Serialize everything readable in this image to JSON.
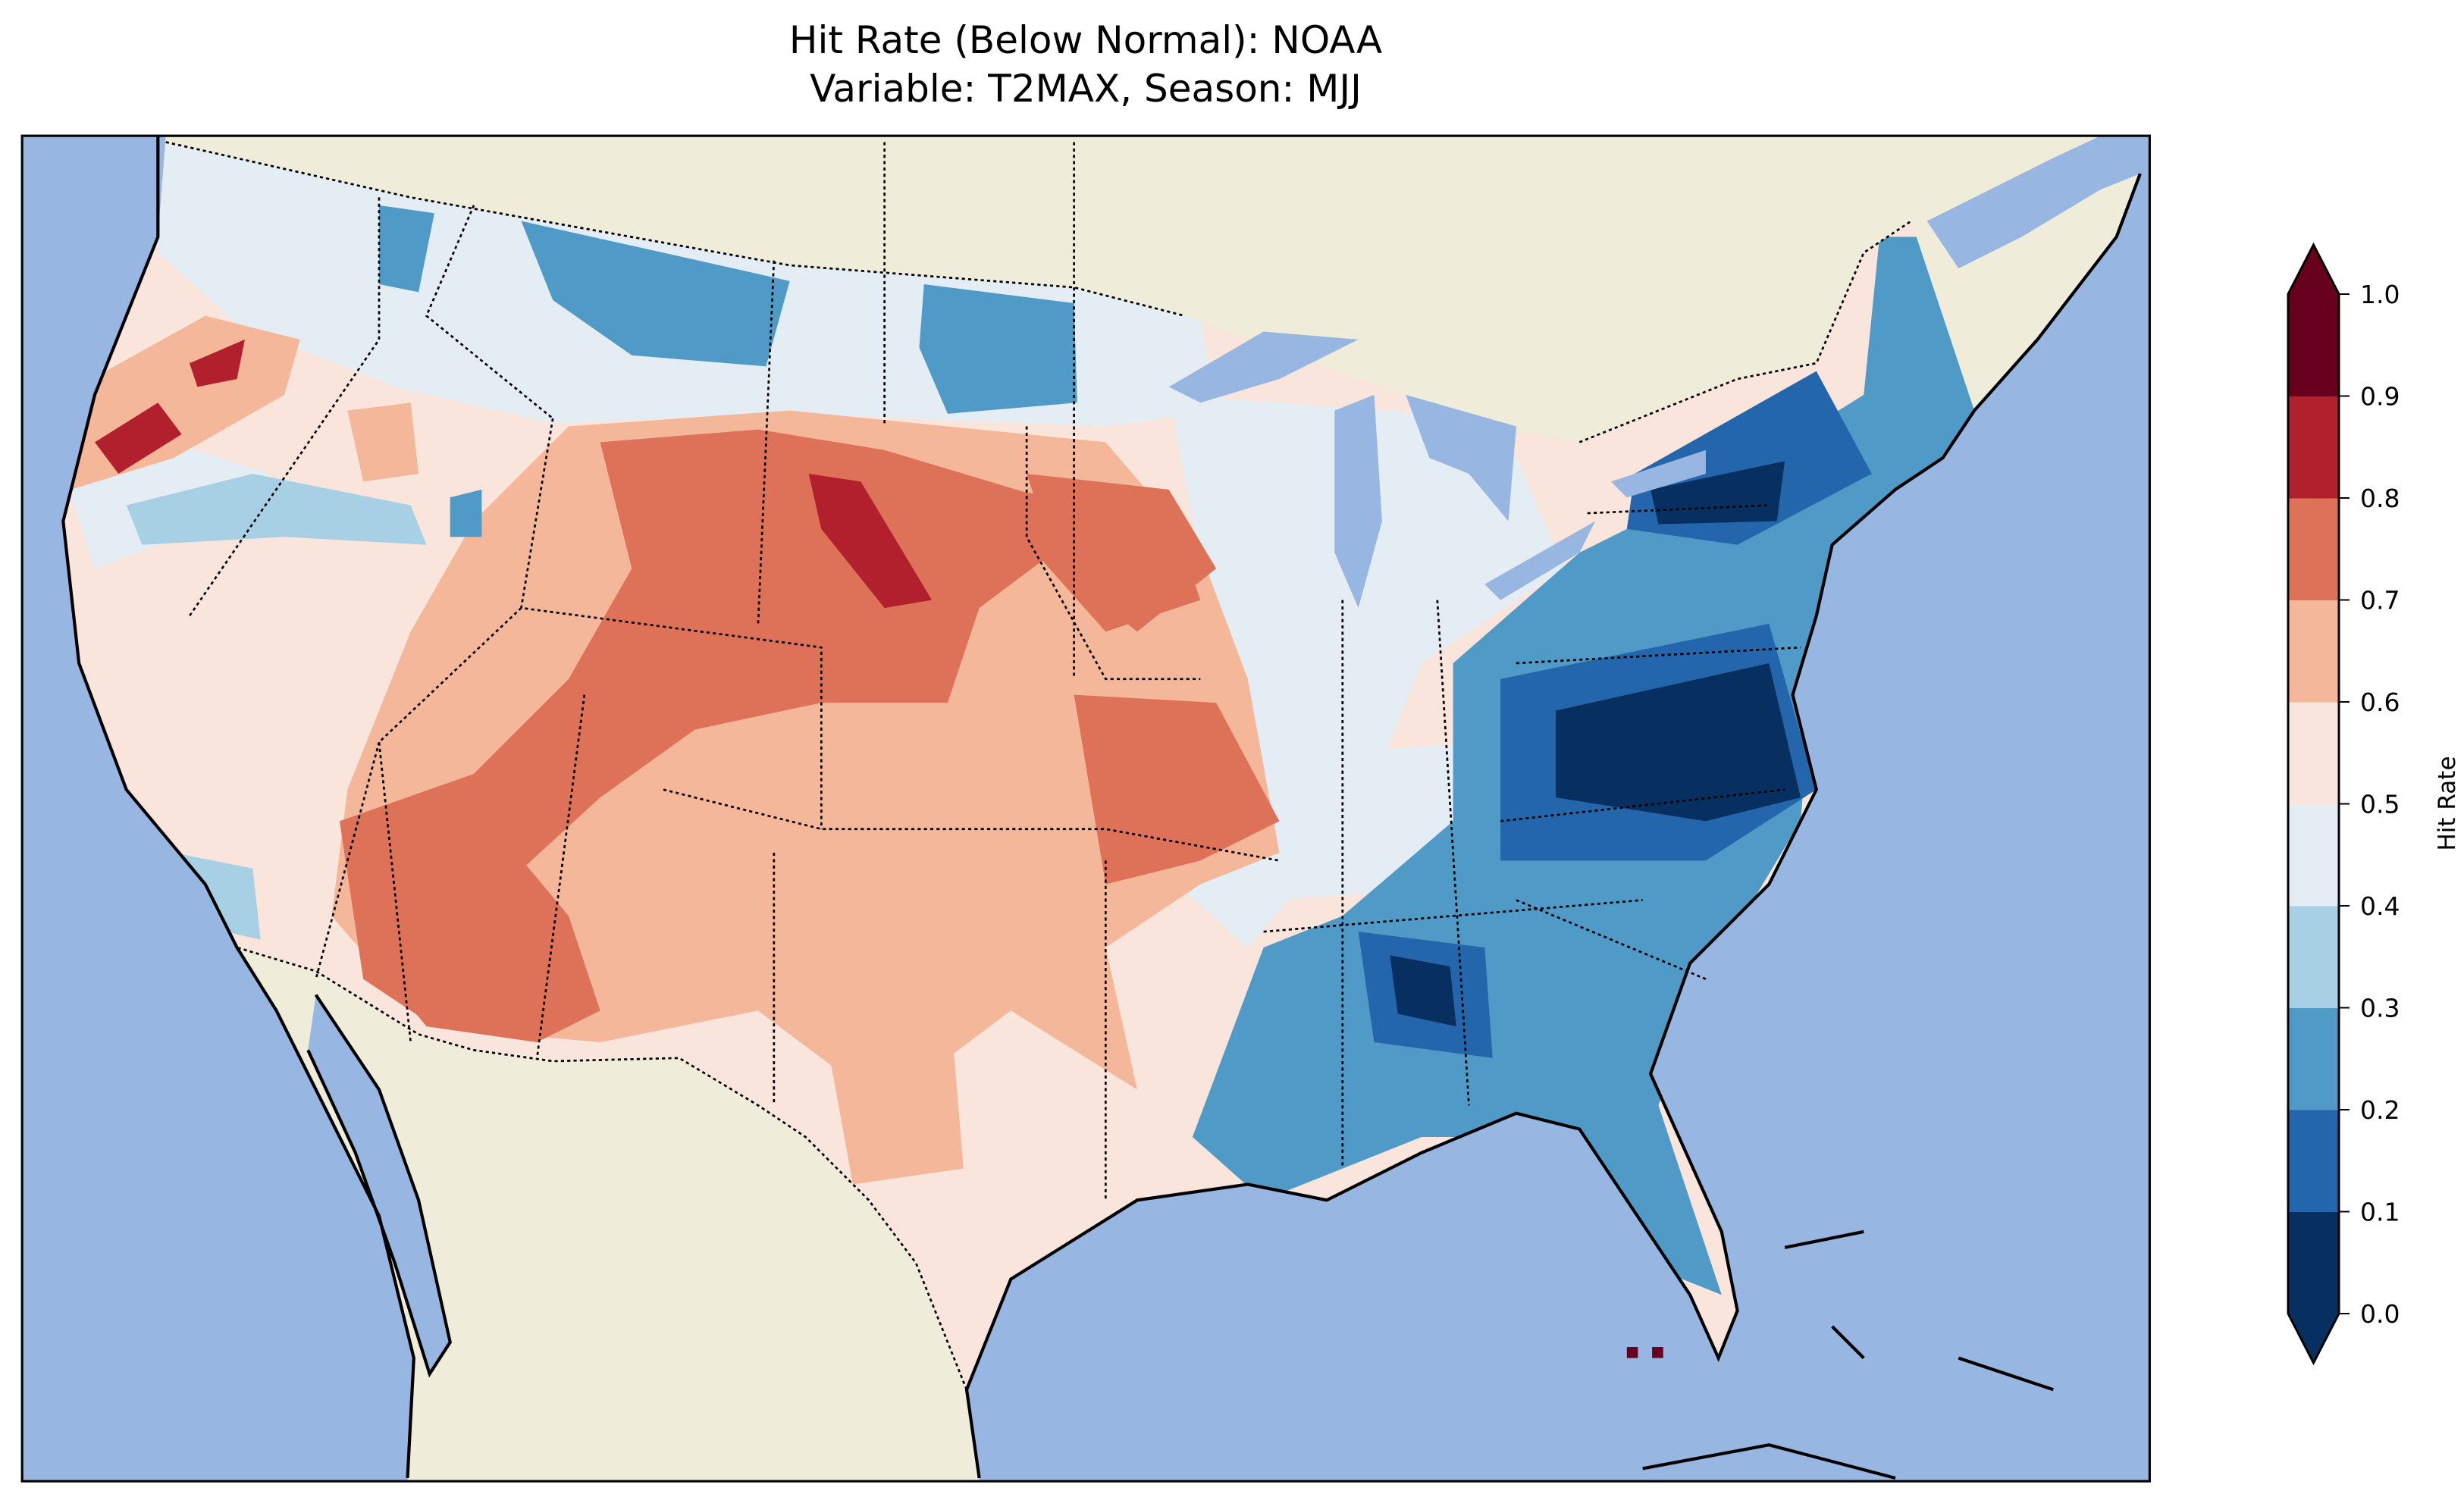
{
  "title": {
    "line1": "Hit Rate (Below Normal): NOAA",
    "line2": "Variable: T2MAX, Season: MJJ"
  },
  "colors": {
    "ocean": "#97b6e1",
    "land": "#efecda",
    "lakes": "#97b6e1"
  },
  "chart_data": {
    "type": "heatmap",
    "title": "Hit Rate (Below Normal): NOAA\nVariable: T2MAX, Season: MJJ",
    "colorbar": {
      "label": "Hit Rate",
      "range": [
        0.0,
        1.0
      ],
      "extend": "both",
      "ticks": [
        "0.0",
        "0.1",
        "0.2",
        "0.3",
        "0.4",
        "0.5",
        "0.6",
        "0.7",
        "0.8",
        "0.9",
        "1.0"
      ],
      "level_colors": [
        "#073060",
        "#2466ab",
        "#4f9ac6",
        "#a8d0e4",
        "#e3edf3",
        "#f9e5dc",
        "#f5b799",
        "#de7259",
        "#b2202d",
        "#67001f"
      ]
    },
    "regions": [
      {
        "name": "contiguous-us-base",
        "value": 0.55
      },
      {
        "name": "northern-tier-and-midwest",
        "value": 0.45
      },
      {
        "name": "ohio-valley",
        "value": 0.45
      },
      {
        "name": "central-plains-and-southwest",
        "value": 0.65
      },
      {
        "name": "oregon-coast",
        "value": 0.65
      },
      {
        "name": "montana-north",
        "value": 0.25
      },
      {
        "name": "north-dakota",
        "value": 0.25
      },
      {
        "name": "pacific-northwest-band",
        "value": 0.35
      },
      {
        "name": "southeast-and-northeast",
        "value": 0.25
      },
      {
        "name": "colorado-nebraska-core",
        "value": 0.75
      },
      {
        "name": "southwest-arizona",
        "value": 0.75
      },
      {
        "name": "iowa-minnesota",
        "value": 0.75
      },
      {
        "name": "missouri-arkansas",
        "value": 0.75
      },
      {
        "name": "virginia-carolinas",
        "value": 0.15
      },
      {
        "name": "new-york-new-england",
        "value": 0.15
      },
      {
        "name": "virginia-core",
        "value": 0.05
      },
      {
        "name": "new-york-core",
        "value": 0.05
      },
      {
        "name": "alabama-core",
        "value": 0.05
      },
      {
        "name": "wyoming-nebraska-peak",
        "value": 0.85
      },
      {
        "name": "oregon-peak",
        "value": 0.85
      },
      {
        "name": "florida-keys",
        "value": 0.95
      }
    ]
  }
}
